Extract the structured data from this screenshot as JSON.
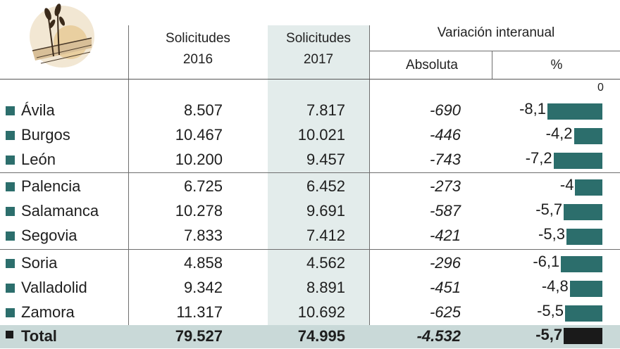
{
  "headers": {
    "col_2016": [
      "Solicitudes",
      "2016"
    ],
    "col_2017": [
      "Solicitudes",
      "2017"
    ],
    "variation": "Variación interanual",
    "absolute": "Absoluta",
    "percent": "%",
    "zero_label": "0"
  },
  "chart_data": {
    "type": "table",
    "columns": [
      "Solicitudes 2016",
      "Solicitudes 2017",
      "Absoluta",
      "%"
    ],
    "rows": [
      {
        "name": "Ávila",
        "s2016": "8.507",
        "s2017": "7.817",
        "abs": "-690",
        "pct_label": "-8,1",
        "pct": -8.1
      },
      {
        "name": "Burgos",
        "s2016": "10.467",
        "s2017": "10.021",
        "abs": "-446",
        "pct_label": "-4,2",
        "pct": -4.2
      },
      {
        "name": "León",
        "s2016": "10.200",
        "s2017": "9.457",
        "abs": "-743",
        "pct_label": "-7,2",
        "pct": -7.2
      },
      {
        "name": "Palencia",
        "s2016": "6.725",
        "s2017": "6.452",
        "abs": "-273",
        "pct_label": "-4",
        "pct": -4.0
      },
      {
        "name": "Salamanca",
        "s2016": "10.278",
        "s2017": "9.691",
        "abs": "-587",
        "pct_label": "-5,7",
        "pct": -5.7
      },
      {
        "name": "Segovia",
        "s2016": "7.833",
        "s2017": "7.412",
        "abs": "-421",
        "pct_label": "-5,3",
        "pct": -5.3
      },
      {
        "name": "Soria",
        "s2016": "4.858",
        "s2017": "4.562",
        "abs": "-296",
        "pct_label": "-6,1",
        "pct": -6.1
      },
      {
        "name": "Valladolid",
        "s2016": "9.342",
        "s2017": "8.891",
        "abs": "-451",
        "pct_label": "-4,8",
        "pct": -4.8
      },
      {
        "name": "Zamora",
        "s2016": "11.317",
        "s2017": "10.692",
        "abs": "-625",
        "pct_label": "-5,5",
        "pct": -5.5
      }
    ],
    "total": {
      "name": "Total",
      "s2016": "79.527",
      "s2017": "74.995",
      "abs": "-4.532",
      "pct_label": "-5,7",
      "pct": -5.7
    },
    "bar_axis": {
      "min": -8.1,
      "max": 0
    },
    "colors": {
      "bar": "#2c6e6c",
      "total_bar": "#1a1a1a",
      "highlight_column": "#e3eceb",
      "total_row": "#c9d9d8"
    }
  }
}
